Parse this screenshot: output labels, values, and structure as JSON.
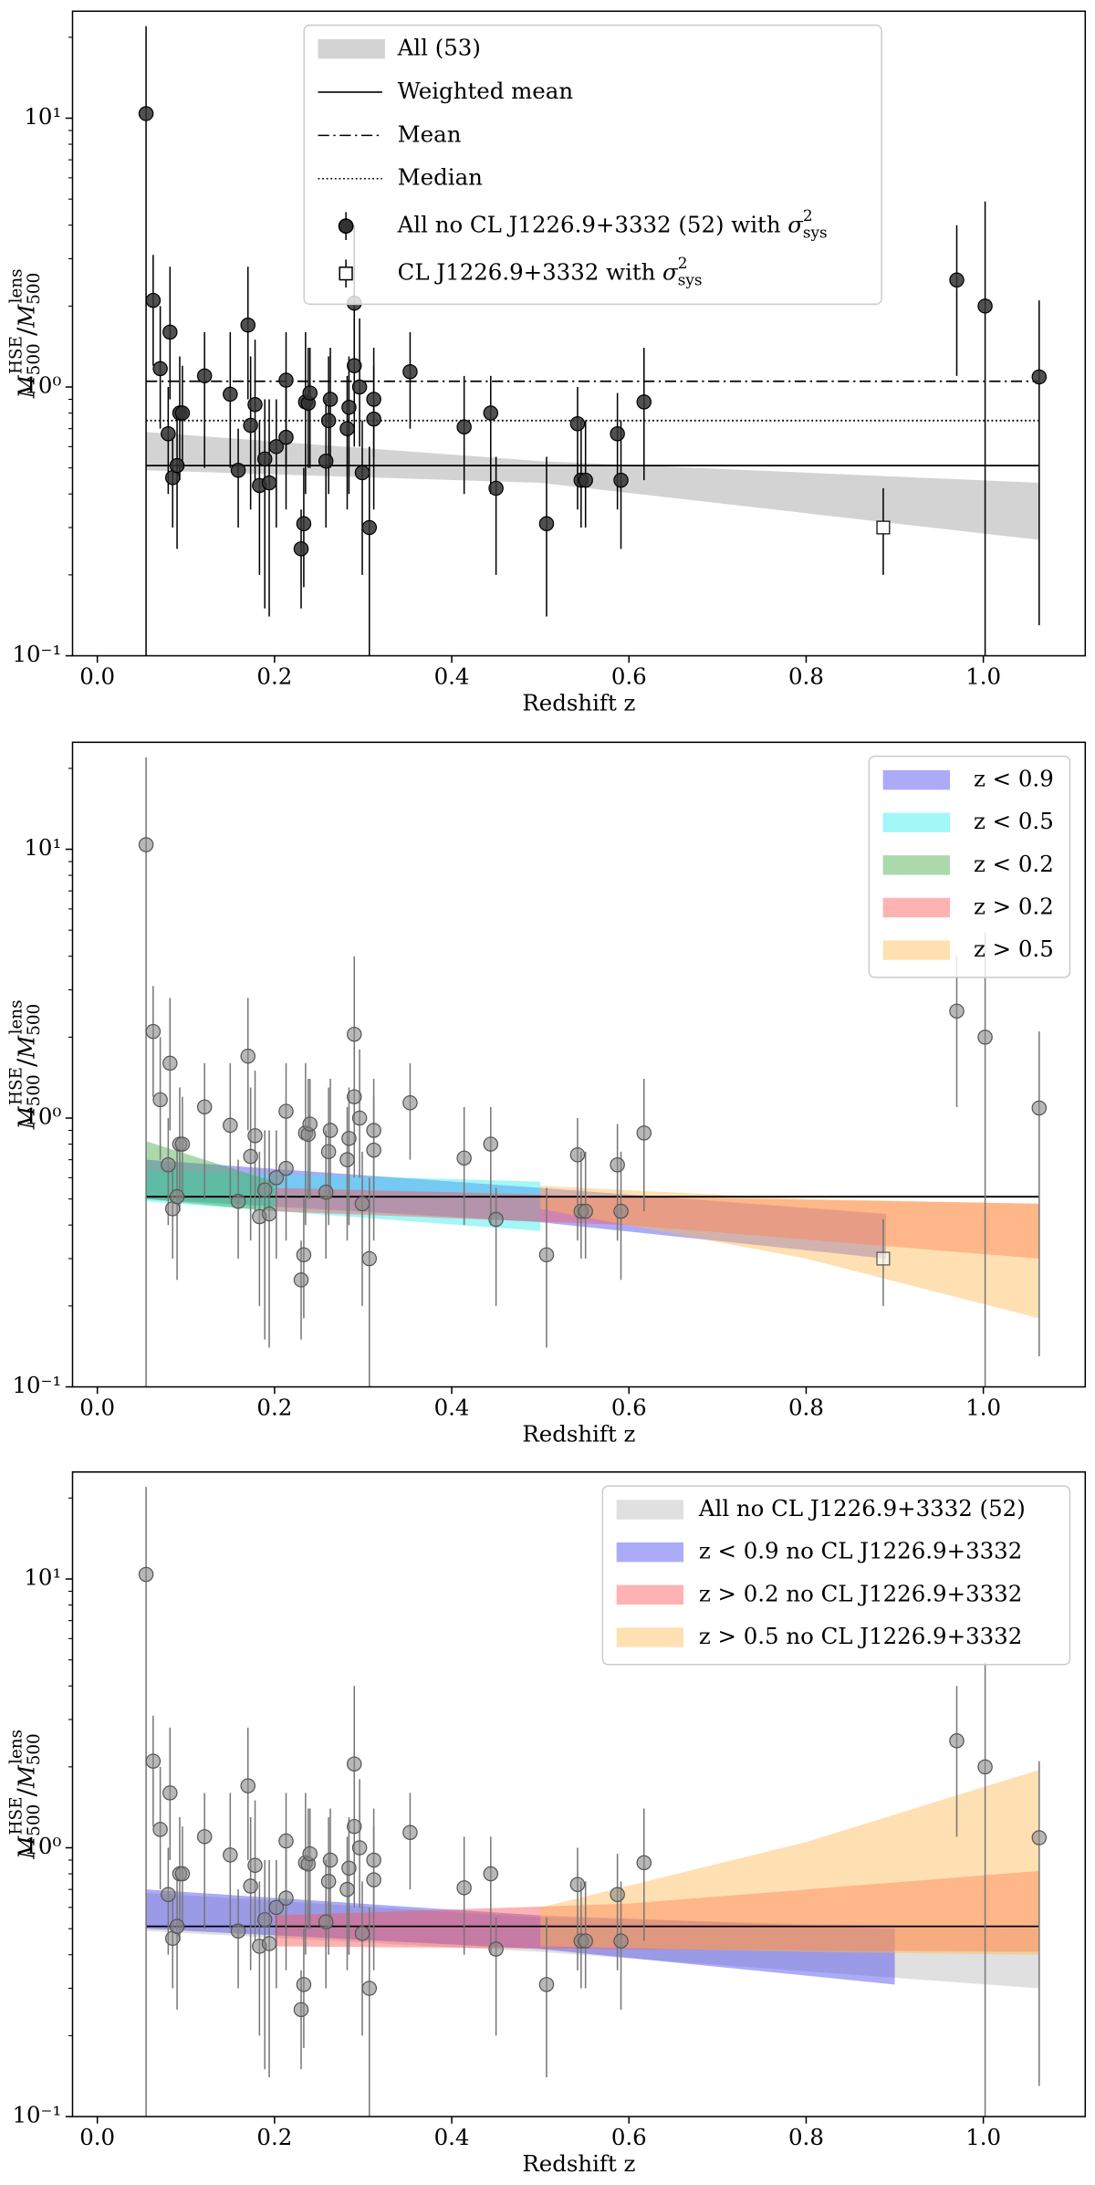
{
  "chart_data": [
    {
      "type": "scatter",
      "log_y": true,
      "xlabel": "Redshift z",
      "ylabel": {
        "base": "M",
        "sub": "500",
        "sup": "HSE",
        "sep": "/",
        "base2": "M",
        "sub2": "500",
        "sup2": "lens"
      },
      "xlim": [
        -0.028,
        1.115
      ],
      "ylim": [
        0.1,
        25
      ],
      "xticks": [
        {
          "value": 0,
          "label": "0.0"
        },
        {
          "value": 0.2,
          "label": "0.2"
        },
        {
          "value": 0.4,
          "label": "0.4"
        },
        {
          "value": 0.6,
          "label": "0.6"
        },
        {
          "value": 0.8,
          "label": "0.8"
        },
        {
          "value": 1,
          "label": "1.0"
        }
      ],
      "yticks": [
        {
          "value": 0.1,
          "label": "10⁻¹"
        },
        {
          "value": 1,
          "label": "10⁰"
        },
        {
          "value": 10,
          "label": "10¹"
        }
      ],
      "legend": "upper center",
      "bands": [
        {
          "name": "All (53)",
          "color": "#bbbbbb",
          "x": [
            0.055,
            0.5,
            1.063
          ],
          "lower": [
            0.49,
            0.44,
            0.27
          ],
          "upper": [
            0.68,
            0.53,
            0.44
          ]
        }
      ],
      "lines": [
        {
          "name": "Weighted mean",
          "value": 0.51,
          "style": "solid"
        },
        {
          "name": "Mean",
          "value": 1.05,
          "style": "dashdot"
        },
        {
          "name": "Median",
          "value": 0.75,
          "style": "dotted"
        }
      ],
      "series": [
        {
          "name": "All no CL J1226.9+3332 (52) with",
          "symbol": "σ",
          "sup": "2",
          "sub": "sys",
          "marker": "circle",
          "color": "#333333",
          "x": [
            0.055,
            0.063,
            0.071,
            0.082,
            0.08,
            0.085,
            0.09,
            0.093,
            0.096,
            0.121,
            0.15,
            0.159,
            0.17,
            0.173,
            0.178,
            0.183,
            0.189,
            0.194,
            0.202,
            0.213,
            0.213,
            0.23,
            0.233,
            0.235,
            0.238,
            0.24,
            0.258,
            0.261,
            0.263,
            0.282,
            0.284,
            0.29,
            0.29,
            0.296,
            0.299,
            0.307,
            0.312,
            0.312,
            0.353,
            0.414,
            0.444,
            0.45,
            0.507,
            0.542,
            0.546,
            0.551,
            0.587,
            0.591,
            0.617,
            0.97,
            1.002,
            1.063
          ],
          "y": [
            10.4,
            2.1,
            1.17,
            1.6,
            0.67,
            0.46,
            0.51,
            0.8,
            0.8,
            1.1,
            0.94,
            0.49,
            1.7,
            0.72,
            0.86,
            0.43,
            0.54,
            0.44,
            0.6,
            1.06,
            0.65,
            0.25,
            0.31,
            0.88,
            0.87,
            0.95,
            0.53,
            0.75,
            0.9,
            0.7,
            0.84,
            1.2,
            2.05,
            1.0,
            0.48,
            0.3,
            0.76,
            0.9,
            1.14,
            0.71,
            0.8,
            0.42,
            0.31,
            0.73,
            0.45,
            0.45,
            0.67,
            0.45,
            0.88,
            2.5,
            2.0,
            1.09
          ],
          "ylow": [
            0.1,
            1.2,
            0.7,
            0.9,
            0.4,
            0.3,
            0.25,
            0.45,
            0.5,
            0.5,
            0.5,
            0.3,
            0.9,
            0.35,
            0.45,
            0.2,
            0.15,
            0.14,
            0.3,
            0.5,
            0.35,
            0.15,
            0.18,
            0.4,
            0.5,
            0.5,
            0.3,
            0.4,
            0.5,
            0.35,
            0.4,
            0.6,
            1.2,
            0.6,
            0.2,
            0.1,
            0.35,
            0.55,
            0.7,
            0.4,
            0.4,
            0.2,
            0.14,
            0.35,
            0.3,
            0.3,
            0.35,
            0.25,
            0.45,
            1.1,
            0.1,
            0.13
          ],
          "yhigh": [
            22,
            3.1,
            2.0,
            2.8,
            1.0,
            0.65,
            0.8,
            1.3,
            1.2,
            1.6,
            1.6,
            0.7,
            2.8,
            1.3,
            1.5,
            0.75,
            0.9,
            0.9,
            0.9,
            1.6,
            1.0,
            0.35,
            0.5,
            1.6,
            1.4,
            1.4,
            0.9,
            1.3,
            1.4,
            1.1,
            1.3,
            2.0,
            4.0,
            1.8,
            0.75,
            0.6,
            1.2,
            1.4,
            1.6,
            1.1,
            1.1,
            0.55,
            0.55,
            1.0,
            0.75,
            0.75,
            0.95,
            0.75,
            1.4,
            4.0,
            4.9,
            2.1
          ]
        },
        {
          "name": "CL J1226.9+3332 with",
          "symbol": "σ",
          "sup": "2",
          "sub": "sys",
          "marker": "square",
          "color": "#ffffff",
          "x": [
            0.887
          ],
          "y": [
            0.3
          ],
          "ylow": [
            0.2
          ],
          "yhigh": [
            0.42
          ]
        }
      ]
    },
    {
      "type": "scatter",
      "log_y": true,
      "xlabel": "Redshift z",
      "ylabel": {
        "base": "M",
        "sub": "500",
        "sup": "HSE",
        "sep": "/",
        "base2": "M",
        "sub2": "500",
        "sup2": "lens"
      },
      "xlim": [
        -0.028,
        1.115
      ],
      "ylim": [
        0.1,
        25
      ],
      "xticks": [
        {
          "value": 0,
          "label": "0.0"
        },
        {
          "value": 0.2,
          "label": "0.2"
        },
        {
          "value": 0.4,
          "label": "0.4"
        },
        {
          "value": 0.6,
          "label": "0.6"
        },
        {
          "value": 0.8,
          "label": "0.8"
        },
        {
          "value": 1,
          "label": "1.0"
        }
      ],
      "yticks": [
        {
          "value": 0.1,
          "label": "10⁻¹"
        },
        {
          "value": 1,
          "label": "10⁰"
        },
        {
          "value": 10,
          "label": "10¹"
        }
      ],
      "legend": "upper right",
      "bands": [
        {
          "name": "z < 0.9",
          "color": "#4444ee",
          "x": [
            0.055,
            0.5,
            0.89
          ],
          "lower": [
            0.5,
            0.41,
            0.3
          ],
          "upper": [
            0.7,
            0.55,
            0.44
          ]
        },
        {
          "name": "z < 0.5",
          "color": "#33eeee",
          "x": [
            0.055,
            0.5
          ],
          "lower": [
            0.49,
            0.38
          ],
          "upper": [
            0.64,
            0.58
          ]
        },
        {
          "name": "z < 0.2",
          "color": "#44aa44",
          "x": [
            0.055,
            0.2
          ],
          "lower": [
            0.5,
            0.45
          ],
          "upper": [
            0.82,
            0.58
          ]
        },
        {
          "name": "z > 0.2",
          "color": "#ff5555",
          "x": [
            0.2,
            0.6,
            1.063
          ],
          "lower": [
            0.45,
            0.4,
            0.3
          ],
          "upper": [
            0.55,
            0.51,
            0.48
          ]
        },
        {
          "name": "z > 0.5",
          "color": "#ffbb55",
          "x": [
            0.5,
            0.8,
            1.063
          ],
          "lower": [
            0.46,
            0.3,
            0.18
          ],
          "upper": [
            0.56,
            0.5,
            0.48
          ]
        }
      ]
    },
    {
      "type": "scatter",
      "log_y": true,
      "xlabel": "Redshift z",
      "ylabel": {
        "base": "M",
        "sub": "500",
        "sup": "HSE",
        "sep": "/",
        "base2": "M",
        "sub2": "500",
        "sup2": "lens"
      },
      "xlim": [
        -0.028,
        1.115
      ],
      "ylim": [
        0.1,
        25
      ],
      "xticks": [
        {
          "value": 0,
          "label": "0.0"
        },
        {
          "value": 0.2,
          "label": "0.2"
        },
        {
          "value": 0.4,
          "label": "0.4"
        },
        {
          "value": 0.6,
          "label": "0.6"
        },
        {
          "value": 0.8,
          "label": "0.8"
        },
        {
          "value": 1,
          "label": "1.0"
        }
      ],
      "yticks": [
        {
          "value": 0.1,
          "label": "10⁻¹"
        },
        {
          "value": 1,
          "label": "10⁰"
        },
        {
          "value": 10,
          "label": "10¹"
        }
      ],
      "legend": "upper right",
      "bands": [
        {
          "name": "All no CL J1226.9+3332 (52)",
          "color": "#bbbbbb",
          "x": [
            0.055,
            0.5,
            1.063
          ],
          "lower": [
            0.49,
            0.41,
            0.3
          ],
          "upper": [
            0.68,
            0.55,
            0.5
          ]
        },
        {
          "name": "z < 0.9 no CL J1226.9+3332",
          "color": "#4444ee",
          "x": [
            0.055,
            0.5,
            0.9
          ],
          "lower": [
            0.5,
            0.42,
            0.31
          ],
          "upper": [
            0.7,
            0.56,
            0.5
          ]
        },
        {
          "name": "z > 0.2 no CL J1226.9+3332",
          "color": "#ff5555",
          "x": [
            0.2,
            0.6,
            1.063
          ],
          "lower": [
            0.43,
            0.42,
            0.41
          ],
          "upper": [
            0.56,
            0.62,
            0.82
          ]
        },
        {
          "name": "z > 0.5 no CL J1226.9+3332",
          "color": "#ffbb55",
          "x": [
            0.5,
            0.8,
            1.063
          ],
          "lower": [
            0.43,
            0.41,
            0.4
          ],
          "upper": [
            0.6,
            1.05,
            1.95
          ]
        }
      ]
    }
  ]
}
